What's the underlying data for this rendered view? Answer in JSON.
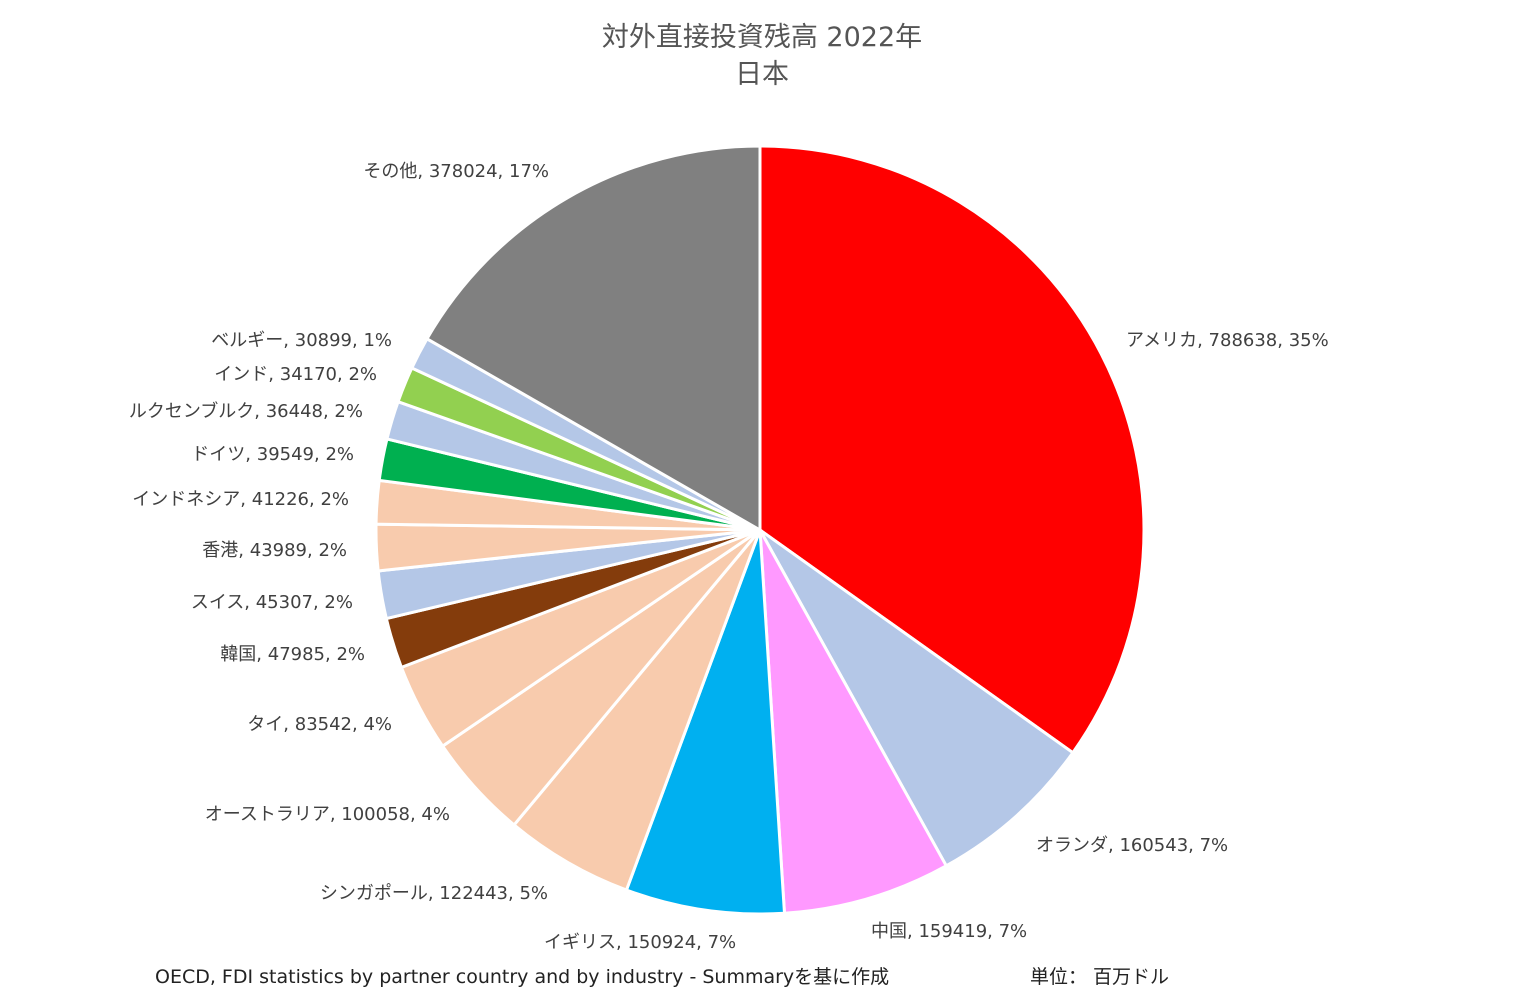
{
  "chart_data": {
    "type": "pie",
    "title": "対外直接投資残高 2022年",
    "subtitle": "日本",
    "slices": [
      {
        "label": "アメリカ, 788638, 35%",
        "name": "アメリカ",
        "value": 788638,
        "percent": 35,
        "color": "#FF0000"
      },
      {
        "label": "オランダ, 160543, 7%",
        "name": "オランダ",
        "value": 160543,
        "percent": 7,
        "color": "#B4C7E7"
      },
      {
        "label": "中国, 159419, 7%",
        "name": "中国",
        "value": 159419,
        "percent": 7,
        "color": "#FF99FF"
      },
      {
        "label": "イギリス, 150924, 7%",
        "name": "イギリス",
        "value": 150924,
        "percent": 7,
        "color": "#00B0F0"
      },
      {
        "label": "シンガポール, 122443, 5%",
        "name": "シンガポール",
        "value": 122443,
        "percent": 5,
        "color": "#F8CBAD"
      },
      {
        "label": "オーストラリア, 100058, 4%",
        "name": "オーストラリア",
        "value": 100058,
        "percent": 4,
        "color": "#F8CBAD"
      },
      {
        "label": "タイ, 83542, 4%",
        "name": "タイ",
        "value": 83542,
        "percent": 4,
        "color": "#F8CBAD"
      },
      {
        "label": "韓国, 47985, 2%",
        "name": "韓国",
        "value": 47985,
        "percent": 2,
        "color": "#843C0C"
      },
      {
        "label": "スイス, 45307, 2%",
        "name": "スイス",
        "value": 45307,
        "percent": 2,
        "color": "#B4C7E7"
      },
      {
        "label": "香港, 43989, 2%",
        "name": "香港",
        "value": 43989,
        "percent": 2,
        "color": "#F8CBAD"
      },
      {
        "label": "インドネシア, 41226, 2%",
        "name": "インドネシア",
        "value": 41226,
        "percent": 2,
        "color": "#F8CBAD"
      },
      {
        "label": "ドイツ, 39549, 2%",
        "name": "ドイツ",
        "value": 39549,
        "percent": 2,
        "color": "#00B050"
      },
      {
        "label": "ルクセンブルク, 36448, 2%",
        "name": "ルクセンブルク",
        "value": 36448,
        "percent": 2,
        "color": "#B4C7E7"
      },
      {
        "label": "インド, 34170, 2%",
        "name": "インド",
        "value": 34170,
        "percent": 2,
        "color": "#92D050"
      },
      {
        "label": "ベルギー, 30899, 1%",
        "name": "ベルギー",
        "value": 30899,
        "percent": 1,
        "color": "#B4C7E7"
      },
      {
        "label": "その他, 378024, 17%",
        "name": "その他",
        "value": 378024,
        "percent": 17,
        "color": "#808080"
      }
    ]
  },
  "footer": {
    "source": "OECD, FDI statistics by partner country and by industry - Summaryを基に作成",
    "unit": "単位： 百万ドル"
  }
}
